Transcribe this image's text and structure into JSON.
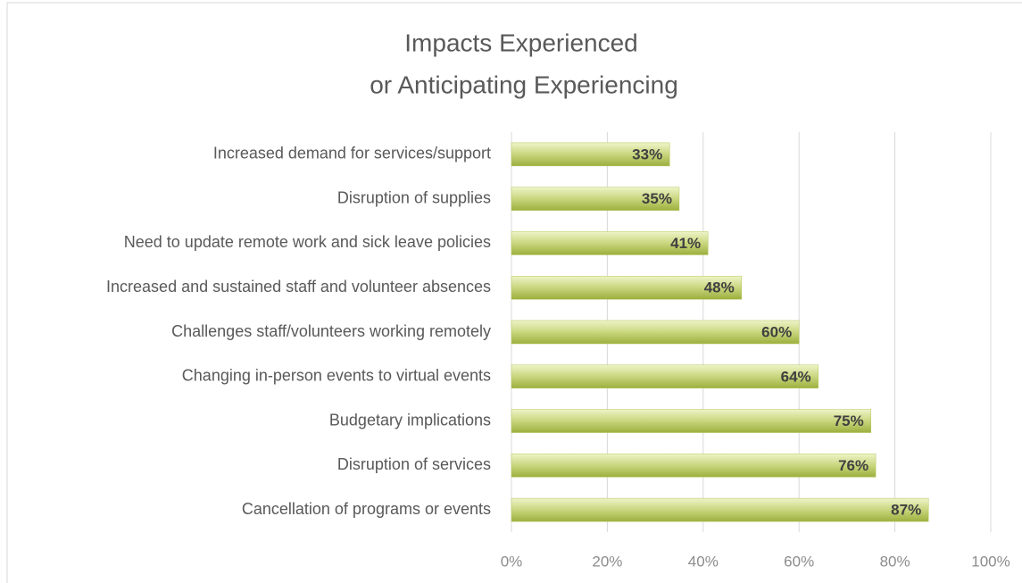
{
  "chart_data": {
    "type": "hbar",
    "title": [
      "Impacts Experienced",
      "or Anticipating Experiencing"
    ],
    "categories": [
      "Increased demand for services/support",
      "Disruption of supplies",
      "Need to update remote work and sick leave policies",
      "Increased and sustained staff and volunteer absences",
      "Challenges staff/volunteers working remotely",
      "Changing in-person events to virtual events",
      "Budgetary implications",
      "Disruption of services",
      "Cancellation of programs or events"
    ],
    "values": [
      33,
      35,
      41,
      48,
      60,
      64,
      75,
      76,
      87
    ],
    "value_labels": [
      "33%",
      "35%",
      "41%",
      "48%",
      "60%",
      "64%",
      "75%",
      "76%",
      "87%"
    ],
    "color": "#b5c55a",
    "xlim": [
      0,
      100
    ],
    "xticks": [
      {
        "value": 0,
        "label": "0%"
      },
      {
        "value": 20,
        "label": "20%"
      },
      {
        "value": 40,
        "label": "40%"
      },
      {
        "value": 60,
        "label": "60%"
      },
      {
        "value": 80,
        "label": "80%"
      },
      {
        "value": 100,
        "label": "100%"
      }
    ],
    "grid": true
  }
}
